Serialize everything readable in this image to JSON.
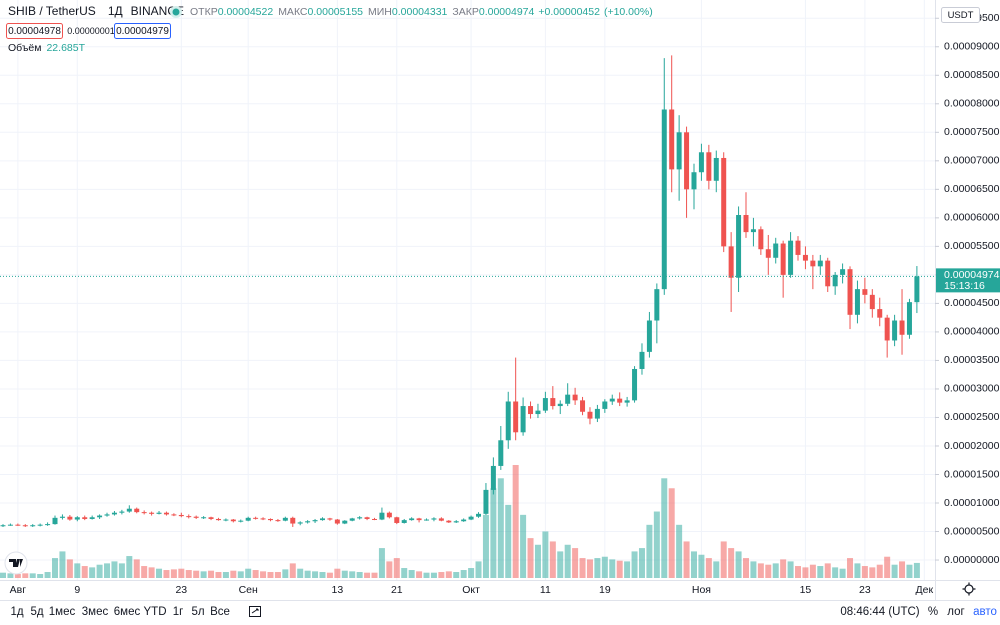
{
  "header": {
    "symbol": "SHIB / TetherUS",
    "interval": "1Д",
    "exchange": "BINANCE",
    "open_label": "ОТКР",
    "high_label": "МАКС",
    "low_label": "МИН",
    "close_label": "ЗАКР",
    "change": "+0.00000452",
    "change_pct": "(+10.00%)",
    "bid": "0.00004978",
    "spread": "0.00000001",
    "ask": "0.00004979",
    "currency": "USDT",
    "countdown": "15:13:16"
  },
  "toolbar": {
    "ranges": [
      "1д",
      "5д",
      "1мес",
      "3мес",
      "6мес",
      "YTD",
      "1г",
      "5л",
      "Все"
    ],
    "time": "08:46:44 (UTC)",
    "percent": "%",
    "log": "лог",
    "auto": "авто"
  },
  "chart_data": {
    "type": "candlestick",
    "x": [
      "07-30",
      "07-31",
      "08-01",
      "08-02",
      "08-03",
      "08-04",
      "08-05",
      "08-06",
      "08-07",
      "08-08",
      "08-09",
      "08-10",
      "08-11",
      "08-12",
      "08-13",
      "08-14",
      "08-15",
      "08-16",
      "08-17",
      "08-18",
      "08-19",
      "08-20",
      "08-21",
      "08-22",
      "08-23",
      "08-24",
      "08-25",
      "08-26",
      "08-27",
      "08-28",
      "08-29",
      "08-30",
      "08-31",
      "09-01",
      "09-02",
      "09-03",
      "09-04",
      "09-05",
      "09-06",
      "09-07",
      "09-08",
      "09-09",
      "09-10",
      "09-11",
      "09-12",
      "09-13",
      "09-14",
      "09-15",
      "09-16",
      "09-17",
      "09-18",
      "09-19",
      "09-20",
      "09-21",
      "09-22",
      "09-23",
      "09-24",
      "09-25",
      "09-26",
      "09-27",
      "09-28",
      "09-29",
      "09-30",
      "10-01",
      "10-02",
      "10-03",
      "10-04",
      "10-05",
      "10-06",
      "10-07",
      "10-08",
      "10-09",
      "10-10",
      "10-11",
      "10-12",
      "10-13",
      "10-14",
      "10-15",
      "10-16",
      "10-17",
      "10-18",
      "10-19",
      "10-20",
      "10-21",
      "10-22",
      "10-23",
      "10-24",
      "10-25",
      "10-26",
      "10-27",
      "10-28",
      "10-29",
      "10-30",
      "10-31",
      "11-01",
      "11-02",
      "11-03",
      "11-04",
      "11-05",
      "11-06",
      "11-07",
      "11-08",
      "11-09",
      "11-10",
      "11-11",
      "11-12",
      "11-13",
      "11-14",
      "11-15",
      "11-16",
      "11-17",
      "11-18",
      "11-19",
      "11-20",
      "11-21",
      "11-22",
      "11-23",
      "11-24",
      "11-25",
      "11-26",
      "11-27",
      "11-28",
      "11-29",
      "11-30"
    ],
    "open": [
      6e-06,
      6.1e-06,
      6.2e-06,
      6.1e-06,
      6e-06,
      6.1e-06,
      6.2e-06,
      6.3e-06,
      7.4e-06,
      7.6e-06,
      7.1e-06,
      7.5e-06,
      7.2e-06,
      7.5e-06,
      7.8e-06,
      8e-06,
      8.3e-06,
      8.5e-06,
      9e-06,
      8.4e-06,
      8.3e-06,
      8.1e-06,
      8.3e-06,
      8e-06,
      7.9e-06,
      7.7e-06,
      7.6e-06,
      7.4e-06,
      7.5e-06,
      7.2e-06,
      7e-06,
      7.1e-06,
      6.8e-06,
      6.9e-06,
      7.4e-06,
      7.3e-06,
      7.2e-06,
      7e-06,
      6.9e-06,
      7.4e-06,
      6.4e-06,
      6.6e-06,
      6.8e-06,
      7e-06,
      7.3e-06,
      7.1e-06,
      6.4e-06,
      6.9e-06,
      7.3e-06,
      7.5e-06,
      7.2e-06,
      7.1e-06,
      8.3e-06,
      7.5e-06,
      6.5e-06,
      7e-06,
      7.3e-06,
      7e-06,
      7.1e-06,
      7.3e-06,
      6.9e-06,
      6.6e-06,
      6.8e-06,
      7.1e-06,
      7.6e-06,
      8.1e-06,
      1.23e-05,
      1.65e-05,
      2.1e-05,
      2.78e-05,
      2.24e-05,
      2.7e-05,
      2.56e-05,
      2.62e-05,
      2.84e-05,
      2.7e-05,
      2.74e-05,
      2.9e-05,
      2.8e-05,
      2.6e-05,
      2.48e-05,
      2.65e-05,
      2.78e-05,
      2.83e-05,
      2.76e-05,
      2.8e-05,
      3.35e-05,
      3.65e-05,
      4.2e-05,
      4.75e-05,
      7.9e-05,
      6.85e-05,
      7.5e-05,
      6.5e-05,
      6.8e-05,
      7.15e-05,
      6.65e-05,
      7.05e-05,
      5.5e-05,
      4.95e-05,
      6.05e-05,
      5.75e-05,
      5.8e-05,
      5.45e-05,
      5.3e-05,
      5.55e-05,
      5e-05,
      5.6e-05,
      5.35e-05,
      5.25e-05,
      5.15e-05,
      5.25e-05,
      4.8e-05,
      5e-05,
      5.1e-05,
      4.3e-05,
      4.75e-05,
      4.65e-05,
      4.4e-05,
      4.25e-05,
      3.85e-05,
      4.2e-05,
      3.95e-05,
      4.522e-05
    ],
    "high": [
      6.3e-06,
      6.4e-06,
      6.4e-06,
      6.3e-06,
      6.3e-06,
      6.4e-06,
      6.6e-06,
      7.8e-06,
      8e-06,
      7.9e-06,
      7.7e-06,
      7.8e-06,
      7.8e-06,
      8e-06,
      8.3e-06,
      8.6e-06,
      8.8e-06,
      9.6e-06,
      9.2e-06,
      8.7e-06,
      8.5e-06,
      8.6e-06,
      8.5e-06,
      8.2e-06,
      8.3e-06,
      8e-06,
      7.8e-06,
      7.7e-06,
      7.6e-06,
      7.4e-06,
      7.3e-06,
      7.2e-06,
      7.1e-06,
      7.6e-06,
      7.6e-06,
      7.5e-06,
      7.3e-06,
      7.2e-06,
      7.6e-06,
      7.6e-06,
      6.8e-06,
      7e-06,
      7.2e-06,
      7.5e-06,
      7.4e-06,
      7.2e-06,
      7e-06,
      7.4e-06,
      7.7e-06,
      7.6e-06,
      7.4e-06,
      9.2e-06,
      8.5e-06,
      7.6e-06,
      7.2e-06,
      7.5e-06,
      7.4e-06,
      7.3e-06,
      7.5e-06,
      7.5e-06,
      7e-06,
      7e-06,
      7.3e-06,
      7.8e-06,
      8.4e-06,
      1.35e-05,
      1.8e-05,
      2.35e-05,
      2.95e-05,
      3.55e-05,
      2.85e-05,
      2.78e-05,
      2.74e-05,
      2.95e-05,
      3.05e-05,
      2.8e-05,
      3.1e-05,
      3.02e-05,
      2.86e-05,
      2.68e-05,
      2.72e-05,
      2.82e-05,
      2.9e-05,
      2.94e-05,
      2.86e-05,
      3.4e-05,
      3.8e-05,
      4.35e-05,
      4.85e-05,
      8.8e-05,
      8.85e-05,
      7.8e-05,
      7.6e-05,
      6.95e-05,
      7.3e-05,
      7.28e-05,
      7.18e-05,
      7.15e-05,
      5.75e-05,
      6.2e-05,
      6.45e-05,
      6e-05,
      5.85e-05,
      5.7e-05,
      5.65e-05,
      5.6e-05,
      5.75e-05,
      5.68e-05,
      5.5e-05,
      5.35e-05,
      5.35e-05,
      5.3e-05,
      5.05e-05,
      5.2e-05,
      5.15e-05,
      4.9e-05,
      4.95e-05,
      4.75e-05,
      4.6e-05,
      4.3e-05,
      4.3e-05,
      4.75e-05,
      4.58e-05,
      5.155e-05
    ],
    "low": [
      5.8e-06,
      6e-06,
      6e-06,
      5.8e-06,
      5.8e-06,
      5.9e-06,
      6e-06,
      6.2e-06,
      7.1e-06,
      6.9e-06,
      6.8e-06,
      7e-06,
      7.1e-06,
      7.2e-06,
      7.6e-06,
      7.8e-06,
      8e-06,
      8.3e-06,
      8.2e-06,
      8e-06,
      7.8e-06,
      8e-06,
      7.8e-06,
      7.7e-06,
      7.5e-06,
      7.3e-06,
      7.2e-06,
      7.2e-06,
      7e-06,
      6.9e-06,
      6.8e-06,
      6.6e-06,
      6.6e-06,
      6.8e-06,
      7.1e-06,
      7e-06,
      6.8e-06,
      6.7e-06,
      6.8e-06,
      5.8e-06,
      6.1e-06,
      6.4e-06,
      6.5e-06,
      6.9e-06,
      6.9e-06,
      6.2e-06,
      6.3e-06,
      6.8e-06,
      7.1e-06,
      7e-06,
      7e-06,
      7e-06,
      7.3e-06,
      6.3e-06,
      6.4e-06,
      6.9e-06,
      6.6e-06,
      6.9e-06,
      6.8e-06,
      6.8e-06,
      6.5e-06,
      6.5e-06,
      6.7e-06,
      7e-06,
      7.4e-06,
      7.9e-06,
      1.15e-05,
      1.58e-05,
      1.95e-05,
      2.1e-05,
      2.18e-05,
      2.48e-05,
      2.49e-05,
      2.58e-05,
      2.64e-05,
      2.56e-05,
      2.7e-05,
      2.72e-05,
      2.54e-05,
      2.38e-05,
      2.42e-05,
      2.58e-05,
      2.72e-05,
      2.7e-05,
      2.69e-05,
      2.76e-05,
      3.25e-05,
      3.55e-05,
      3.8e-05,
      4.65e-05,
      6.45e-05,
      6.3e-05,
      6e-05,
      6.15e-05,
      6.65e-05,
      6.5e-05,
      6.45e-05,
      5.4e-05,
      4.35e-05,
      4.7e-05,
      5.65e-05,
      5.5e-05,
      5.35e-05,
      5e-05,
      5.2e-05,
      4.6e-05,
      4.95e-05,
      5.25e-05,
      5.1e-05,
      4.75e-05,
      5e-05,
      4.7e-05,
      4.65e-05,
      4.85e-05,
      4.05e-05,
      4.15e-05,
      4.5e-05,
      4.25e-05,
      4.1e-05,
      3.55e-05,
      3.75e-05,
      3.6e-05,
      3.88e-05,
      4.331e-05
    ],
    "close": [
      6.1e-06,
      6.2e-06,
      6.1e-06,
      6e-06,
      6.1e-06,
      6.2e-06,
      6.3e-06,
      7.4e-06,
      7.6e-06,
      7.1e-06,
      7.5e-06,
      7.2e-06,
      7.5e-06,
      7.8e-06,
      8e-06,
      8.3e-06,
      8.5e-06,
      9e-06,
      8.4e-06,
      8.3e-06,
      8.1e-06,
      8.3e-06,
      8e-06,
      7.9e-06,
      7.7e-06,
      7.6e-06,
      7.4e-06,
      7.5e-06,
      7.2e-06,
      7e-06,
      7.1e-06,
      6.8e-06,
      6.9e-06,
      7.4e-06,
      7.3e-06,
      7.2e-06,
      7e-06,
      6.9e-06,
      7.4e-06,
      6.4e-06,
      6.6e-06,
      6.8e-06,
      7e-06,
      7.3e-06,
      7.1e-06,
      6.4e-06,
      6.9e-06,
      7.3e-06,
      7.5e-06,
      7.2e-06,
      7.1e-06,
      8.3e-06,
      7.5e-06,
      6.5e-06,
      7e-06,
      7.3e-06,
      7e-06,
      7.1e-06,
      7.3e-06,
      6.9e-06,
      6.6e-06,
      6.8e-06,
      7.1e-06,
      7.6e-06,
      8.1e-06,
      1.23e-05,
      1.65e-05,
      2.1e-05,
      2.78e-05,
      2.24e-05,
      2.7e-05,
      2.56e-05,
      2.62e-05,
      2.84e-05,
      2.7e-05,
      2.74e-05,
      2.9e-05,
      2.8e-05,
      2.6e-05,
      2.48e-05,
      2.65e-05,
      2.78e-05,
      2.83e-05,
      2.76e-05,
      2.8e-05,
      3.35e-05,
      3.65e-05,
      4.2e-05,
      4.75e-05,
      7.9e-05,
      6.85e-05,
      7.5e-05,
      6.5e-05,
      6.8e-05,
      7.15e-05,
      6.65e-05,
      7.05e-05,
      5.5e-05,
      4.95e-05,
      6.05e-05,
      5.75e-05,
      5.8e-05,
      5.45e-05,
      5.3e-05,
      5.55e-05,
      5e-05,
      5.6e-05,
      5.35e-05,
      5.25e-05,
      5.15e-05,
      5.25e-05,
      4.8e-05,
      5e-05,
      5.1e-05,
      4.3e-05,
      4.75e-05,
      4.65e-05,
      4.4e-05,
      4.25e-05,
      3.85e-05,
      4.2e-05,
      3.95e-05,
      4.522e-05,
      4.974e-05
    ],
    "up_color": "#26a69a",
    "down_color": "#ef5350",
    "volume": {
      "name": "Объём",
      "last_label": "22.685T",
      "values": [
        8,
        7,
        6,
        7,
        7,
        6,
        9,
        30,
        40,
        28,
        22,
        18,
        16,
        20,
        22,
        25,
        22,
        33,
        28,
        18,
        16,
        14,
        12,
        13,
        14,
        12,
        11,
        10,
        11,
        9,
        9,
        11,
        10,
        14,
        12,
        10,
        9,
        9,
        13,
        22,
        14,
        11,
        10,
        9,
        8,
        14,
        11,
        10,
        9,
        8,
        8,
        45,
        25,
        30,
        15,
        12,
        10,
        8,
        8,
        9,
        10,
        9,
        12,
        15,
        25,
        95,
        135,
        150,
        110,
        170,
        95,
        60,
        50,
        70,
        55,
        40,
        50,
        45,
        30,
        28,
        30,
        32,
        28,
        26,
        25,
        40,
        45,
        80,
        100,
        150,
        135,
        80,
        55,
        40,
        35,
        30,
        25,
        55,
        45,
        40,
        30,
        25,
        22,
        20,
        22,
        28,
        25,
        18,
        16,
        20,
        18,
        22,
        16,
        14,
        30,
        22,
        18,
        16,
        20,
        32,
        20,
        25,
        20,
        22.685
      ]
    },
    "ylim": [
      -3.5e-06,
      9.82e-05
    ],
    "yticks": [
      {
        "value": 9.5e-05,
        "label": "0.00009500"
      },
      {
        "value": 9e-05,
        "label": "0.00009000"
      },
      {
        "value": 8.5e-05,
        "label": "0.00008500"
      },
      {
        "value": 8e-05,
        "label": "0.00008000"
      },
      {
        "value": 7.5e-05,
        "label": "0.00007500"
      },
      {
        "value": 7e-05,
        "label": "0.00007000"
      },
      {
        "value": 6.5e-05,
        "label": "0.00006500"
      },
      {
        "value": 6e-05,
        "label": "0.00006000"
      },
      {
        "value": 5.5e-05,
        "label": "0.00005500"
      },
      {
        "value": 5e-05,
        "label": "0.00005000"
      },
      {
        "value": 4.5e-05,
        "label": "0.00004500"
      },
      {
        "value": 4e-05,
        "label": "0.00004000"
      },
      {
        "value": 3.5e-05,
        "label": "0.00003500"
      },
      {
        "value": 3e-05,
        "label": "0.00003000"
      },
      {
        "value": 2.5e-05,
        "label": "0.00002500"
      },
      {
        "value": 2e-05,
        "label": "0.00002000"
      },
      {
        "value": 1.5e-05,
        "label": "0.00001500"
      },
      {
        "value": 1e-05,
        "label": "0.00001000"
      },
      {
        "value": 5e-06,
        "label": "0.00000500"
      },
      {
        "value": 0,
        "label": "0.00000000"
      }
    ],
    "xticks": [
      {
        "value": "08-01",
        "label": "Авг"
      },
      {
        "value": "08-09",
        "label": "9"
      },
      {
        "value": "08-23",
        "label": "23"
      },
      {
        "value": "09-01",
        "label": "Сен"
      },
      {
        "value": "09-13",
        "label": "13"
      },
      {
        "value": "09-21",
        "label": "21"
      },
      {
        "value": "10-01",
        "label": "Окт"
      },
      {
        "value": "10-11",
        "label": "11"
      },
      {
        "value": "10-19",
        "label": "19"
      },
      {
        "value": "11-01",
        "label": "Ноя"
      },
      {
        "value": "11-15",
        "label": "15"
      },
      {
        "value": "11-23",
        "label": "23"
      },
      {
        "value": "12-01",
        "label": "Дек"
      }
    ],
    "grid": true,
    "log_scale": false
  }
}
